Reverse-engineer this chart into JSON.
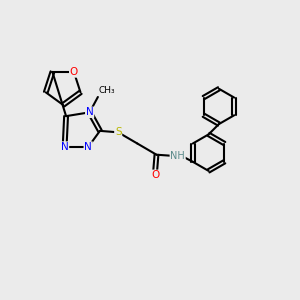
{
  "background_color": "#ebebeb",
  "atom_colors": {
    "C": "#000000",
    "N": "#0000ff",
    "O": "#ff0000",
    "S": "#b8b800",
    "H": "#5a8a8a"
  }
}
